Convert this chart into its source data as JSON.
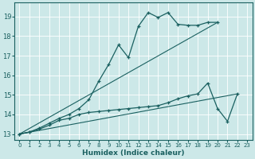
{
  "xlabel": "Humidex (Indice chaleur)",
  "bg_color": "#cce8e8",
  "grid_color": "#ffffff",
  "line_color": "#1a6060",
  "xlim": [
    -0.5,
    23.5
  ],
  "ylim": [
    12.7,
    19.7
  ],
  "xticks": [
    0,
    1,
    2,
    3,
    4,
    5,
    6,
    7,
    8,
    9,
    10,
    11,
    12,
    13,
    14,
    15,
    16,
    17,
    18,
    19,
    20,
    21,
    22,
    23
  ],
  "yticks": [
    13,
    14,
    15,
    16,
    17,
    18,
    19
  ],
  "line1_x": [
    0,
    1,
    2,
    3,
    4,
    5,
    6,
    7,
    8,
    9,
    10,
    11,
    12,
    13,
    14,
    15,
    16,
    17,
    18,
    19,
    20
  ],
  "line1_y": [
    13.0,
    13.1,
    13.3,
    13.55,
    13.8,
    14.0,
    14.3,
    14.75,
    15.7,
    16.55,
    17.55,
    16.9,
    18.5,
    19.2,
    18.95,
    19.2,
    18.6,
    18.55,
    18.55,
    18.7,
    18.7
  ],
  "line2_x": [
    0,
    1,
    2,
    3,
    4,
    5,
    6,
    7,
    8,
    9,
    10,
    11,
    12,
    13,
    14,
    15,
    16,
    17,
    18,
    19,
    20,
    21,
    22
  ],
  "line2_y": [
    13.0,
    13.1,
    13.25,
    13.45,
    13.7,
    13.8,
    14.0,
    14.1,
    14.15,
    14.2,
    14.25,
    14.3,
    14.35,
    14.4,
    14.45,
    14.6,
    14.8,
    14.95,
    15.05,
    15.6,
    14.3,
    13.65,
    15.05
  ],
  "ref_line1": {
    "x": [
      0,
      20
    ],
    "y": [
      13.0,
      18.7
    ]
  },
  "ref_line2": {
    "x": [
      0,
      22
    ],
    "y": [
      13.0,
      15.05
    ]
  }
}
